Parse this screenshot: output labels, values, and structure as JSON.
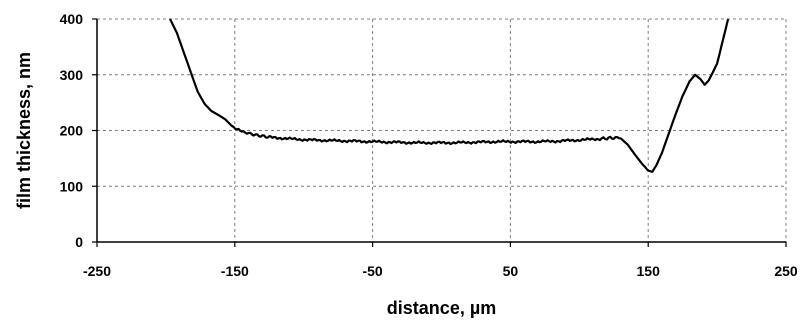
{
  "chart_data": {
    "type": "line",
    "title": "",
    "xlabel": "distance, µm",
    "ylabel": "film thickness, nm",
    "xlim": [
      -250,
      250
    ],
    "ylim": [
      0,
      400
    ],
    "x_ticks": [
      -250,
      -150,
      -50,
      50,
      150,
      250
    ],
    "y_ticks": [
      0,
      100,
      200,
      300,
      400
    ],
    "x_tick_labels": [
      "-250",
      "-150",
      "-50",
      "50",
      "150",
      "250"
    ],
    "y_tick_labels": [
      "0",
      "100",
      "200",
      "300",
      "400"
    ],
    "grid": true,
    "legend": "none",
    "line_color": "#000000",
    "grid_color": "#7f7f7f",
    "series": [
      {
        "x": [
          -197,
          -192,
          -187,
          -182,
          -177,
          -172,
          -167,
          -162,
          -157,
          -152,
          -145,
          -135,
          -125,
          -110,
          -95,
          -80,
          -65,
          -50,
          -35,
          -20,
          -5,
          10,
          25,
          40,
          55,
          70,
          85,
          100,
          115,
          125,
          130,
          135,
          140,
          145,
          150,
          153,
          156,
          160,
          165,
          170,
          175,
          180,
          184,
          188,
          191,
          194,
          197,
          200,
          203,
          206,
          208
        ],
        "y": [
          400,
          375,
          340,
          305,
          270,
          248,
          235,
          228,
          220,
          208,
          198,
          192,
          188,
          185,
          183,
          182,
          181,
          180,
          179,
          178,
          178,
          178,
          179,
          180,
          180,
          180,
          181,
          183,
          185,
          187,
          186,
          175,
          158,
          142,
          128,
          126,
          138,
          160,
          195,
          230,
          262,
          288,
          300,
          292,
          282,
          290,
          305,
          320,
          350,
          380,
          400
        ]
      }
    ]
  }
}
